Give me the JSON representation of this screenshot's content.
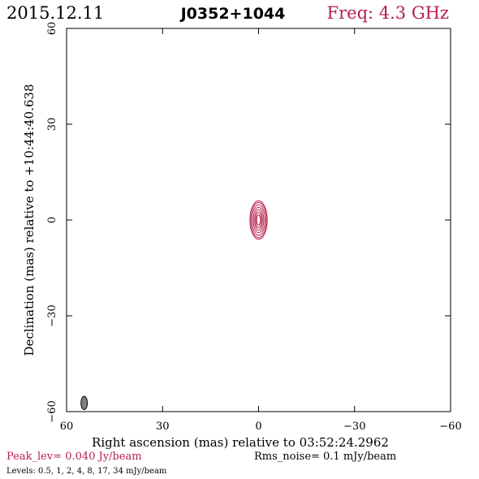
{
  "header": {
    "date": "2015.12.11",
    "source": "J0352+1044",
    "freq": "Freq: 4.3 GHz"
  },
  "colors": {
    "accent": "#b5204a",
    "axis": "#000000",
    "beam_fill": "#808080"
  },
  "footer": {
    "peak": "Peak_lev=  0.040 Jy/beam",
    "rms": "Rms_noise=  0.1 mJy/beam",
    "levels": "Levels: 0.5,   1,   2,   4,   8,  17,  34 mJy/beam"
  },
  "chart_data": {
    "type": "contour",
    "xlabel": "Right ascension (mas) relative to 03:52:24.2962",
    "ylabel": "Declination (mas) relative to +10:44:40.638",
    "xlim": [
      60,
      -60
    ],
    "ylim": [
      -60,
      60
    ],
    "xticks": [
      60,
      30,
      0,
      -30,
      -60
    ],
    "yticks": [
      -60,
      -30,
      0,
      30,
      60
    ],
    "x_tick_labels": [
      "60",
      "30",
      "0",
      "−30",
      "−60"
    ],
    "y_tick_labels": [
      "−60",
      "−30",
      "0",
      "30",
      "60"
    ],
    "center": [
      0,
      0
    ],
    "contour_levels_mJy": [
      0.5,
      1,
      2,
      4,
      8,
      17,
      34
    ],
    "contours": [
      {
        "level": 34,
        "rx": 0.6,
        "ry": 1.6
      },
      {
        "level": 17,
        "rx": 0.9,
        "ry": 2.4
      },
      {
        "level": 8,
        "rx": 1.2,
        "ry": 3.2
      },
      {
        "level": 4,
        "rx": 1.6,
        "ry": 4.0
      },
      {
        "level": 2,
        "rx": 2.0,
        "ry": 4.8
      },
      {
        "level": 1,
        "rx": 2.4,
        "ry": 5.5
      },
      {
        "level": 0.5,
        "rx": 2.7,
        "ry": 6.0
      }
    ],
    "beam": {
      "x": 54.5,
      "y": -57.3,
      "rx": 1.0,
      "ry": 2.1
    }
  }
}
